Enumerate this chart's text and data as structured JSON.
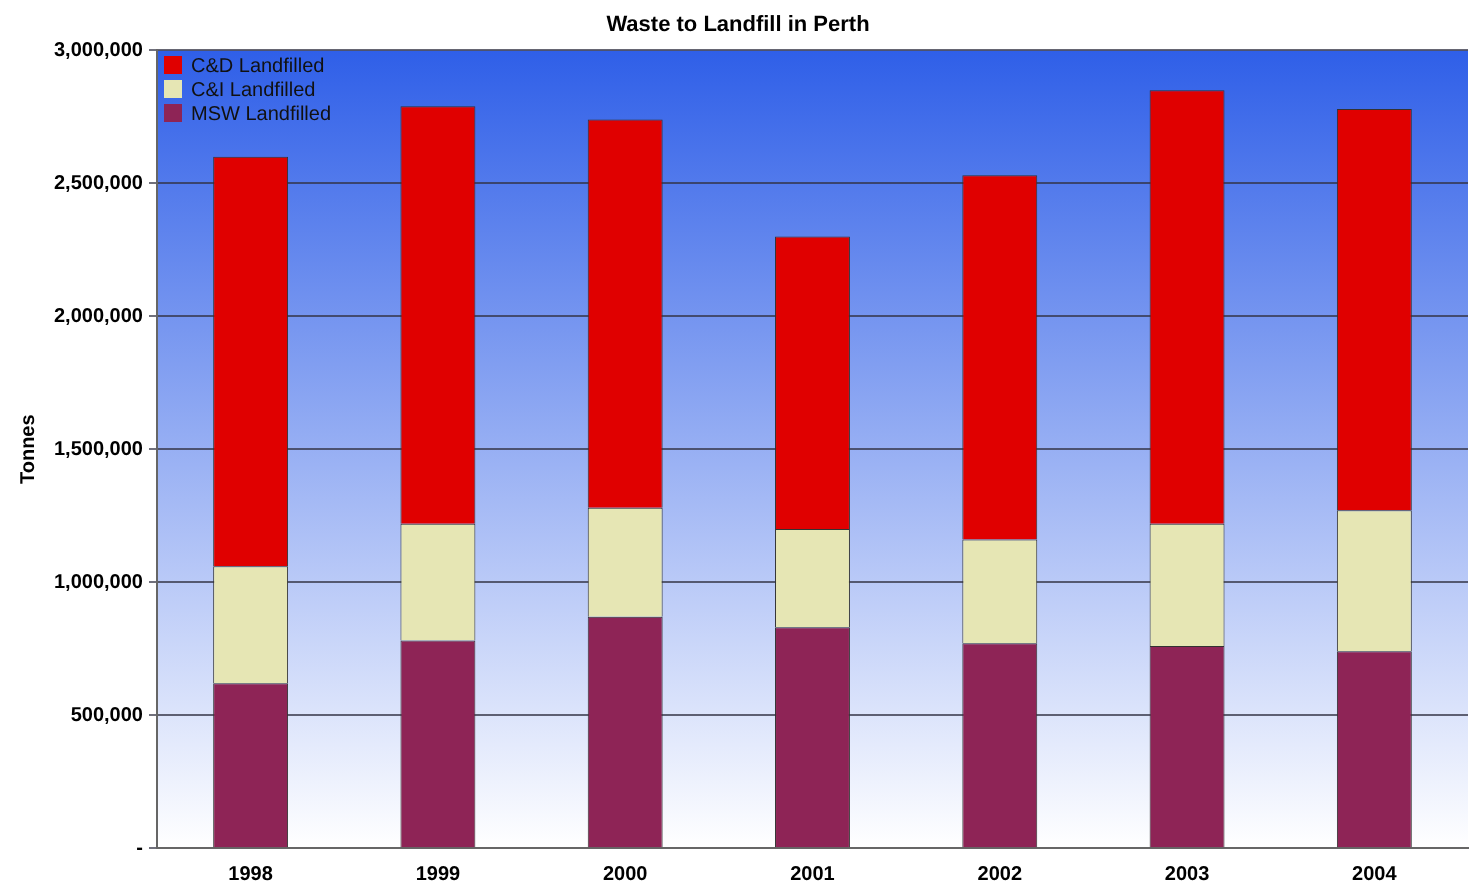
{
  "chart_data": {
    "type": "bar",
    "title": "Waste to Landfill in Perth",
    "ylabel": "Tonnes",
    "stacked": true,
    "categories": [
      "1998",
      "1999",
      "2000",
      "2001",
      "2002",
      "2003",
      "2004"
    ],
    "series": [
      {
        "name": "MSW Landfilled",
        "color": "#8e2456",
        "values": [
          620000,
          780000,
          870000,
          830000,
          770000,
          760000,
          740000
        ]
      },
      {
        "name": "C&I Landfilled",
        "color": "#e6e6b4",
        "values": [
          440000,
          440000,
          410000,
          370000,
          390000,
          460000,
          530000
        ]
      },
      {
        "name": "C&D Landfilled",
        "color": "#e00000",
        "values": [
          1540000,
          1570000,
          1460000,
          1100000,
          1370000,
          1630000,
          1510000
        ]
      }
    ],
    "ylim": [
      0,
      3000000
    ],
    "yticks": [
      {
        "value": 0,
        "label": "-"
      },
      {
        "value": 500000,
        "label": "500,000"
      },
      {
        "value": 1000000,
        "label": "1,000,000"
      },
      {
        "value": 1500000,
        "label": "1,500,000"
      },
      {
        "value": 2000000,
        "label": "2,000,000"
      },
      {
        "value": 2500000,
        "label": "2,500,000"
      },
      {
        "value": 3000000,
        "label": "3,000,000"
      }
    ],
    "grid": "y",
    "legend": "top left"
  }
}
